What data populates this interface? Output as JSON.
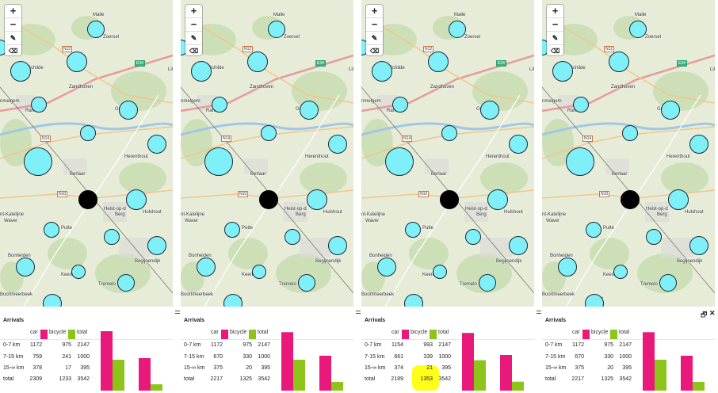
{
  "colors": {
    "car": "#e8197b",
    "bicycle": "#8cc41a",
    "circle_fill": "#7ff0f7",
    "highlight": "#ffff1a"
  },
  "map": {
    "places": [
      "Malle",
      "Zoersel",
      "Schilde",
      "Zandhoven",
      "Ranst",
      "Grobbendonk",
      "Herenthout",
      "Berlaar",
      "Heist-op-den-Berg",
      "Hulshout",
      "Sint-Katelijne-Waver",
      "Putte",
      "Begijnendijk",
      "Bonheiden",
      "Keerbergen",
      "Tremelo",
      "Boortmeerbeek",
      "Haacht"
    ],
    "roads": [
      "N12",
      "E34",
      "N14",
      "N10"
    ],
    "place_labels": [
      "Malle",
      "Zoersel",
      "N12",
      "E34",
      "Schilde",
      "Zandhoven",
      "nmelgem",
      "Ran",
      "Gr",
      "N14",
      "Herenthout",
      "Berlaar",
      "N10",
      "Heist-op-d",
      "Berg",
      "Hulshout",
      "nt-Katelijne",
      "Waver",
      "Putte",
      "Bonheiden",
      "Begijnendijk",
      "Keerbe",
      "Tremelo",
      "Boortmeerbeek",
      "Haacht",
      "Lil"
    ]
  },
  "zoom_controls": {
    "plus": "+",
    "minus": "−",
    "edit_icon": "pencil-icon",
    "erase_icon": "eraser-icon"
  },
  "window_controls": {
    "restore": "🗗",
    "close": "✕"
  },
  "panels": [
    {
      "title": "Arrivals",
      "legend": {
        "car": "car",
        "bicycle": "bicycle",
        "total": "total"
      },
      "rows": [
        {
          "label": "0-7 km",
          "car": "1172",
          "bicycle": "975",
          "total": "2147"
        },
        {
          "label": "7-15 km",
          "car": "759",
          "bicycle": "241",
          "total": "1000"
        },
        {
          "label": "15-∞ km",
          "car": "378",
          "bicycle": "17",
          "total": "395"
        },
        {
          "label": "total",
          "car": "2309",
          "bicycle": "1233",
          "total": "3542"
        }
      ],
      "chart_data": {
        "type": "bar",
        "categories": [
          "car",
          "bicycle"
        ],
        "series": [
          {
            "name": "car",
            "values": [
              2309,
              1233
            ]
          },
          {
            "name": "bicycle",
            "values": [
              1172,
              241
            ]
          }
        ]
      }
    },
    {
      "title": "Arrivals",
      "legend": {
        "car": "car",
        "bicycle": "bicycle",
        "total": "total"
      },
      "rows": [
        {
          "label": "0-7 km",
          "car": "1172",
          "bicycle": "975",
          "total": "2147"
        },
        {
          "label": "7-15 km",
          "car": "670",
          "bicycle": "330",
          "total": "1000"
        },
        {
          "label": "15-∞ km",
          "car": "375",
          "bicycle": "20",
          "total": "395"
        },
        {
          "label": "total",
          "car": "2217",
          "bicycle": "1325",
          "total": "3542"
        }
      ],
      "chart_data": {
        "type": "bar",
        "categories": [
          "car",
          "bicycle"
        ],
        "series": [
          {
            "name": "car",
            "values": [
              2217,
              1325
            ]
          },
          {
            "name": "bicycle",
            "values": [
              1172,
              330
            ]
          }
        ]
      }
    },
    {
      "title": "Arrivals",
      "legend": {
        "car": "car",
        "bicycle": "bicycle",
        "total": "total"
      },
      "rows": [
        {
          "label": "0-7 km",
          "car": "1154",
          "bicycle": "993",
          "total": "2147"
        },
        {
          "label": "7-15 km",
          "car": "661",
          "bicycle": "339",
          "total": "1000"
        },
        {
          "label": "15-∞ km",
          "car": "374",
          "bicycle": "21",
          "total": "395"
        },
        {
          "label": "total",
          "car": "2189",
          "bicycle": "1353",
          "total": "3542"
        }
      ],
      "chart_data": {
        "type": "bar",
        "categories": [
          "car",
          "bicycle"
        ],
        "series": [
          {
            "name": "car",
            "values": [
              2189,
              1353
            ]
          },
          {
            "name": "bicycle",
            "values": [
              1154,
              339
            ]
          }
        ]
      }
    },
    {
      "title": "Arrivals",
      "legend": {
        "car": "car",
        "bicycle": "bicycle",
        "total": "total"
      },
      "rows": [
        {
          "label": "0-7 km",
          "car": "1172",
          "bicycle": "975",
          "total": "2147"
        },
        {
          "label": "7-15 km",
          "car": "670",
          "bicycle": "330",
          "total": "1000"
        },
        {
          "label": "15-∞ km",
          "car": "375",
          "bicycle": "20",
          "total": "395"
        },
        {
          "label": "total",
          "car": "2217",
          "bicycle": "1325",
          "total": "3542"
        }
      ],
      "chart_data": {
        "type": "bar",
        "categories": [
          "car",
          "bicycle"
        ],
        "series": [
          {
            "name": "car",
            "values": [
              2217,
              1325
            ]
          },
          {
            "name": "bicycle",
            "values": [
              1172,
              330
            ]
          }
        ]
      }
    }
  ]
}
